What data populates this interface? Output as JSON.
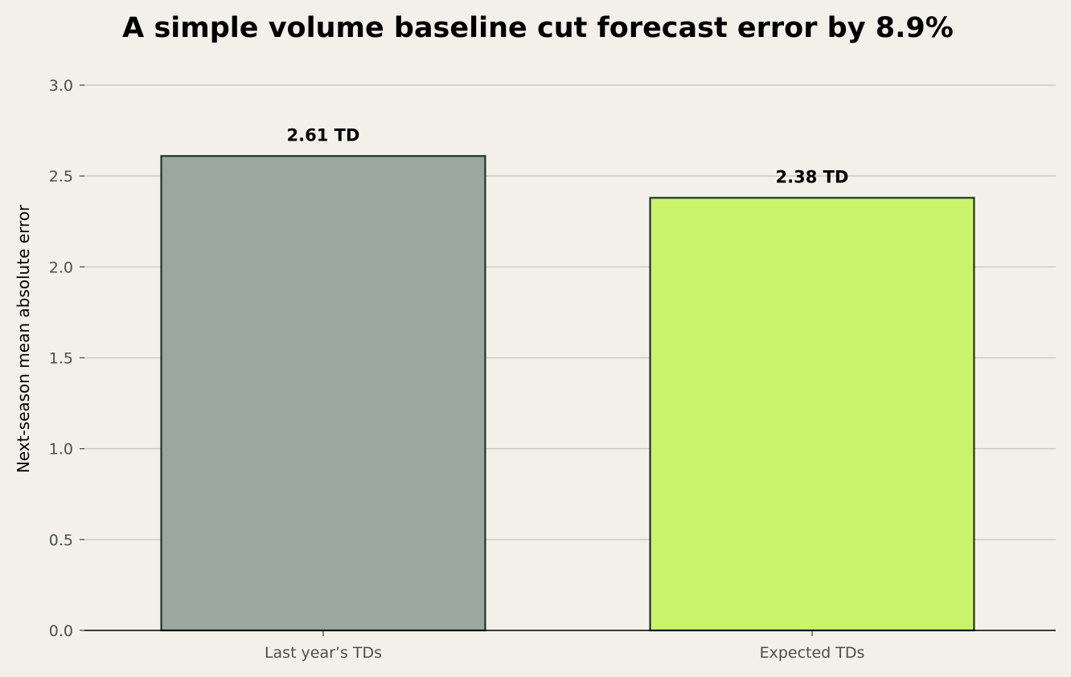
{
  "chart_data": {
    "type": "bar",
    "title": "A simple volume baseline cut forecast error by 8.9%",
    "xlabel": "",
    "ylabel": "Next-season mean absolute error",
    "categories": [
      "Last year’s TDs",
      "Expected TDs"
    ],
    "values": [
      2.61,
      2.38
    ],
    "value_labels": [
      "2.61 TD",
      "2.38 TD"
    ],
    "bar_colors": [
      "#9ca89f",
      "#c9f36b"
    ],
    "bar_edge_color": "#1f3328",
    "ylim": [
      0,
      3.0
    ],
    "yticks": [
      0.0,
      0.5,
      1.0,
      1.5,
      2.0,
      2.5,
      3.0
    ],
    "ytick_labels": [
      "0.0",
      "0.5",
      "1.0",
      "1.5",
      "2.0",
      "2.5",
      "3.0"
    ],
    "grid": "horizontal",
    "legend": "none"
  }
}
